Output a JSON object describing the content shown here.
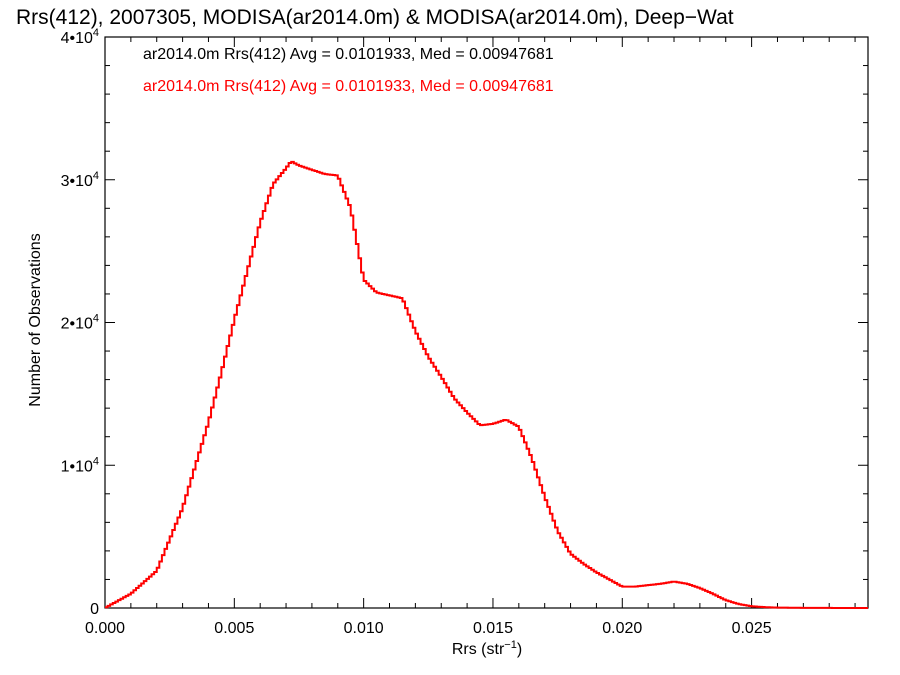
{
  "chart_data": {
    "type": "line",
    "title": "Rrs(412), 2007305, MODISA(ar2014.0m) & MODISA(ar2014.0m), Deep−Wat",
    "xlabel": "Rrs (str",
    "xlabel_sup": "−1",
    "xlabel_end": ")",
    "ylabel": "Number of Observations",
    "xlim": [
      0,
      0.0295
    ],
    "ylim": [
      0,
      40000
    ],
    "x_ticks": [
      {
        "value": 0.0,
        "label": "0.000"
      },
      {
        "value": 0.005,
        "label": "0.005"
      },
      {
        "value": 0.01,
        "label": "0.010"
      },
      {
        "value": 0.015,
        "label": "0.015"
      },
      {
        "value": 0.02,
        "label": "0.020"
      },
      {
        "value": 0.025,
        "label": "0.025"
      }
    ],
    "y_ticks": [
      {
        "value": 0,
        "label": "0",
        "sup": ""
      },
      {
        "value": 10000,
        "label": "1•10",
        "sup": "4"
      },
      {
        "value": 20000,
        "label": "2•10",
        "sup": "4"
      },
      {
        "value": 30000,
        "label": "3•10",
        "sup": "4"
      },
      {
        "value": 40000,
        "label": "4•10",
        "sup": "4"
      }
    ],
    "legend": [
      {
        "text": "ar2014.0m Rrs(412) Avg = 0.0101933, Med = 0.00947681",
        "color": "#000000"
      },
      {
        "text": "ar2014.0m Rrs(412) Avg = 0.0101933, Med = 0.00947681",
        "color": "#ff0000"
      }
    ],
    "legend_position": "top-left",
    "series": [
      {
        "color": "#ff0000",
        "x": [
          0.0,
          0.001,
          0.002,
          0.003,
          0.004,
          0.0045,
          0.005,
          0.0055,
          0.006,
          0.0065,
          0.007,
          0.0072,
          0.0075,
          0.008,
          0.0085,
          0.009,
          0.0095,
          0.01,
          0.0105,
          0.011,
          0.0115,
          0.012,
          0.0125,
          0.013,
          0.0135,
          0.014,
          0.0145,
          0.015,
          0.0155,
          0.016,
          0.0165,
          0.017,
          0.0175,
          0.018,
          0.0185,
          0.019,
          0.0195,
          0.02,
          0.0205,
          0.021,
          0.0215,
          0.022,
          0.0225,
          0.023,
          0.0235,
          0.024,
          0.0245,
          0.025,
          0.0255,
          0.026,
          0.027,
          0.028,
          0.0295
        ],
        "y": [
          0,
          1000,
          2600,
          7000,
          13000,
          16500,
          20200,
          23600,
          27000,
          29700,
          30800,
          31300,
          31000,
          30700,
          30400,
          30300,
          28000,
          23000,
          22100,
          21900,
          21700,
          19400,
          17600,
          16200,
          14700,
          13700,
          12800,
          12900,
          13200,
          12700,
          10500,
          7800,
          5400,
          3800,
          3100,
          2500,
          2000,
          1500,
          1500,
          1600,
          1700,
          1850,
          1700,
          1400,
          1000,
          550,
          280,
          120,
          60,
          30,
          10,
          5,
          0
        ]
      }
    ]
  }
}
